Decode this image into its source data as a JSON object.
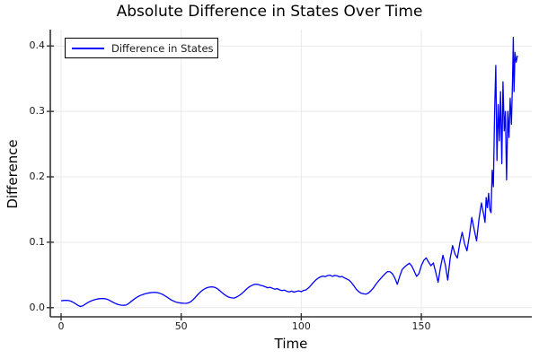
{
  "chart_data": {
    "type": "line",
    "title": "Absolute Difference in States Over Time",
    "xlabel": "Time",
    "ylabel": "Difference",
    "legend": {
      "position": "top-left",
      "entries": [
        {
          "label": "Difference in States",
          "color": "#0000ff"
        }
      ]
    },
    "grid": true,
    "xlim": [
      -4.5,
      196
    ],
    "ylim": [
      -0.014,
      0.425
    ],
    "x_ticks": [
      0,
      50,
      100,
      150
    ],
    "x_tick_labels": [
      "0",
      "50",
      "100",
      "150"
    ],
    "y_ticks": [
      0.0,
      0.1,
      0.2,
      0.3,
      0.4
    ],
    "y_tick_labels": [
      "0.0",
      "0.1",
      "0.2",
      "0.3",
      "0.4"
    ],
    "colors": {
      "line": "#0000ff",
      "grid": "#e9e9e9",
      "axis": "#333333",
      "text": "#000000"
    },
    "series": [
      {
        "name": "Difference in States",
        "points": [
          [
            0,
            0.0105
          ],
          [
            1,
            0.011
          ],
          [
            2,
            0.0112
          ],
          [
            3,
            0.011
          ],
          [
            4,
            0.01
          ],
          [
            5,
            0.0082
          ],
          [
            6,
            0.006
          ],
          [
            7,
            0.0035
          ],
          [
            8,
            0.0018
          ],
          [
            9,
            0.0028
          ],
          [
            10,
            0.0052
          ],
          [
            11,
            0.0075
          ],
          [
            12,
            0.0095
          ],
          [
            13,
            0.011
          ],
          [
            14,
            0.0122
          ],
          [
            15,
            0.0131
          ],
          [
            16,
            0.0137
          ],
          [
            17,
            0.014
          ],
          [
            18,
            0.0138
          ],
          [
            19,
            0.013
          ],
          [
            20,
            0.0115
          ],
          [
            21,
            0.0095
          ],
          [
            22,
            0.0075
          ],
          [
            23,
            0.0058
          ],
          [
            24,
            0.0045
          ],
          [
            25,
            0.0038
          ],
          [
            26,
            0.0036
          ],
          [
            27,
            0.004
          ],
          [
            28,
            0.006
          ],
          [
            29,
            0.009
          ],
          [
            30,
            0.0118
          ],
          [
            31,
            0.0145
          ],
          [
            32,
            0.0168
          ],
          [
            33,
            0.0186
          ],
          [
            34,
            0.02
          ],
          [
            35,
            0.0212
          ],
          [
            36,
            0.0221
          ],
          [
            37,
            0.0228
          ],
          [
            38,
            0.0232
          ],
          [
            39,
            0.0233
          ],
          [
            40,
            0.023
          ],
          [
            41,
            0.0221
          ],
          [
            42,
            0.0207
          ],
          [
            43,
            0.0187
          ],
          [
            44,
            0.0163
          ],
          [
            45,
            0.0138
          ],
          [
            46,
            0.0115
          ],
          [
            47,
            0.0097
          ],
          [
            48,
            0.0084
          ],
          [
            49,
            0.0075
          ],
          [
            50,
            0.007
          ],
          [
            51,
            0.0067
          ],
          [
            52,
            0.0066
          ],
          [
            53,
            0.0072
          ],
          [
            54,
            0.0092
          ],
          [
            55,
            0.0124
          ],
          [
            56,
            0.0163
          ],
          [
            57,
            0.0203
          ],
          [
            58,
            0.024
          ],
          [
            59,
            0.027
          ],
          [
            60,
            0.0292
          ],
          [
            61,
            0.0307
          ],
          [
            62,
            0.0316
          ],
          [
            63,
            0.0318
          ],
          [
            64,
            0.031
          ],
          [
            65,
            0.0291
          ],
          [
            66,
            0.0262
          ],
          [
            67,
            0.023
          ],
          [
            68,
            0.02
          ],
          [
            69,
            0.0176
          ],
          [
            70,
            0.0158
          ],
          [
            71,
            0.015
          ],
          [
            72,
            0.0147
          ],
          [
            73,
            0.016
          ],
          [
            74,
            0.0182
          ],
          [
            75,
            0.0208
          ],
          [
            76,
            0.0242
          ],
          [
            77,
            0.0277
          ],
          [
            78,
            0.0308
          ],
          [
            79,
            0.0332
          ],
          [
            80,
            0.035
          ],
          [
            81,
            0.036
          ],
          [
            82,
            0.0354
          ],
          [
            83,
            0.0341
          ],
          [
            84,
            0.0333
          ],
          [
            85,
            0.0319
          ],
          [
            86,
            0.0305
          ],
          [
            87,
            0.0312
          ],
          [
            88,
            0.0296
          ],
          [
            89,
            0.0281
          ],
          [
            90,
            0.0291
          ],
          [
            91,
            0.0271
          ],
          [
            92,
            0.0261
          ],
          [
            93,
            0.0269
          ],
          [
            94,
            0.0249
          ],
          [
            95,
            0.0242
          ],
          [
            96,
            0.0253
          ],
          [
            97,
            0.0237
          ],
          [
            98,
            0.0249
          ],
          [
            99,
            0.0256
          ],
          [
            100,
            0.0244
          ],
          [
            101,
            0.0263
          ],
          [
            102,
            0.0272
          ],
          [
            103,
            0.0302
          ],
          [
            104,
            0.0342
          ],
          [
            105,
            0.0382
          ],
          [
            106,
            0.0421
          ],
          [
            107,
            0.0451
          ],
          [
            108,
            0.0471
          ],
          [
            109,
            0.0483
          ],
          [
            110,
            0.0474
          ],
          [
            111,
            0.0491
          ],
          [
            112,
            0.0496
          ],
          [
            113,
            0.0479
          ],
          [
            114,
            0.0493
          ],
          [
            115,
            0.0486
          ],
          [
            116,
            0.0469
          ],
          [
            117,
            0.0477
          ],
          [
            118,
            0.0454
          ],
          [
            119,
            0.0438
          ],
          [
            120,
            0.0418
          ],
          [
            121,
            0.0378
          ],
          [
            122,
            0.0328
          ],
          [
            123,
            0.0278
          ],
          [
            124,
            0.0243
          ],
          [
            125,
            0.0219
          ],
          [
            126,
            0.0211
          ],
          [
            127,
            0.0207
          ],
          [
            128,
            0.0223
          ],
          [
            129,
            0.0259
          ],
          [
            130,
            0.0301
          ],
          [
            131,
            0.0352
          ],
          [
            132,
            0.0401
          ],
          [
            133,
            0.0441
          ],
          [
            134,
            0.0483
          ],
          [
            135,
            0.0521
          ],
          [
            136,
            0.0553
          ],
          [
            137,
            0.0547
          ],
          [
            138,
            0.0519
          ],
          [
            139,
            0.0448
          ],
          [
            140,
            0.0358
          ],
          [
            141,
            0.0482
          ],
          [
            142,
            0.0581
          ],
          [
            143,
            0.0622
          ],
          [
            144,
            0.0651
          ],
          [
            145,
            0.0679
          ],
          [
            146,
            0.0638
          ],
          [
            147,
            0.0561
          ],
          [
            148,
            0.0478
          ],
          [
            149,
            0.0522
          ],
          [
            150,
            0.0641
          ],
          [
            151,
            0.0722
          ],
          [
            152,
            0.0761
          ],
          [
            153,
            0.0698
          ],
          [
            154,
            0.0641
          ],
          [
            155,
            0.0683
          ],
          [
            156,
            0.0538
          ],
          [
            157,
            0.0388
          ],
          [
            158,
            0.0622
          ],
          [
            159,
            0.0801
          ],
          [
            160,
            0.0648
          ],
          [
            161,
            0.0421
          ],
          [
            162,
            0.0752
          ],
          [
            163,
            0.0948
          ],
          [
            164,
            0.0822
          ],
          [
            165,
            0.0758
          ],
          [
            166,
            0.0981
          ],
          [
            167,
            0.1152
          ],
          [
            168,
            0.0979
          ],
          [
            169,
            0.0868
          ],
          [
            170,
            0.1102
          ],
          [
            171,
            0.1378
          ],
          [
            172,
            0.1198
          ],
          [
            173,
            0.1021
          ],
          [
            174,
            0.1352
          ],
          [
            175,
            0.1601
          ],
          [
            176,
            0.1418
          ],
          [
            176.5,
            0.1302
          ],
          [
            177,
            0.1682
          ],
          [
            177.5,
            0.1528
          ],
          [
            178,
            0.1748
          ],
          [
            178.5,
            0.1502
          ],
          [
            179,
            0.1452
          ],
          [
            179.5,
            0.2102
          ],
          [
            180,
            0.1848
          ],
          [
            180.5,
            0.2998
          ],
          [
            181,
            0.3702
          ],
          [
            181.5,
            0.2248
          ],
          [
            182,
            0.3102
          ],
          [
            182.5,
            0.2552
          ],
          [
            183,
            0.3302
          ],
          [
            183.5,
            0.2202
          ],
          [
            184,
            0.3452
          ],
          [
            184.5,
            0.2702
          ],
          [
            185,
            0.2998
          ],
          [
            185.5,
            0.1952
          ],
          [
            186,
            0.3002
          ],
          [
            186.5,
            0.2602
          ],
          [
            187,
            0.3202
          ],
          [
            187.5,
            0.2802
          ],
          [
            188,
            0.3502
          ],
          [
            188.3,
            0.4132
          ],
          [
            188.6,
            0.3302
          ],
          [
            189,
            0.3902
          ],
          [
            189.5,
            0.3752
          ],
          [
            190,
            0.3852
          ]
        ]
      }
    ]
  }
}
